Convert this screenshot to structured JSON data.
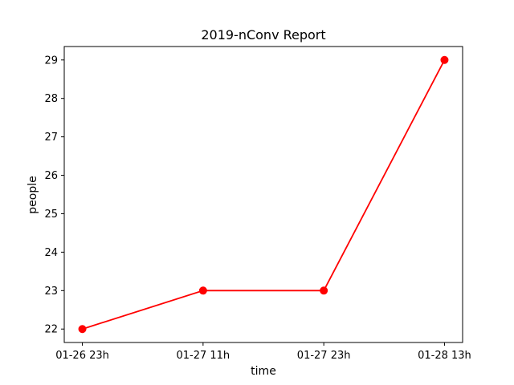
{
  "chart_data": {
    "type": "line",
    "title": "2019-nConv Report",
    "xlabel": "time",
    "ylabel": "people",
    "categories": [
      "01-26 23h",
      "01-27 11h",
      "01-27 23h",
      "01-28 13h"
    ],
    "series": [
      {
        "values": [
          22,
          23,
          23,
          29
        ],
        "color": "#ff0000",
        "marker": "circle"
      }
    ],
    "yticks": [
      22,
      23,
      24,
      25,
      26,
      27,
      28,
      29
    ],
    "ylim": [
      21.65,
      29.35
    ],
    "grid": false,
    "legend": "none"
  }
}
